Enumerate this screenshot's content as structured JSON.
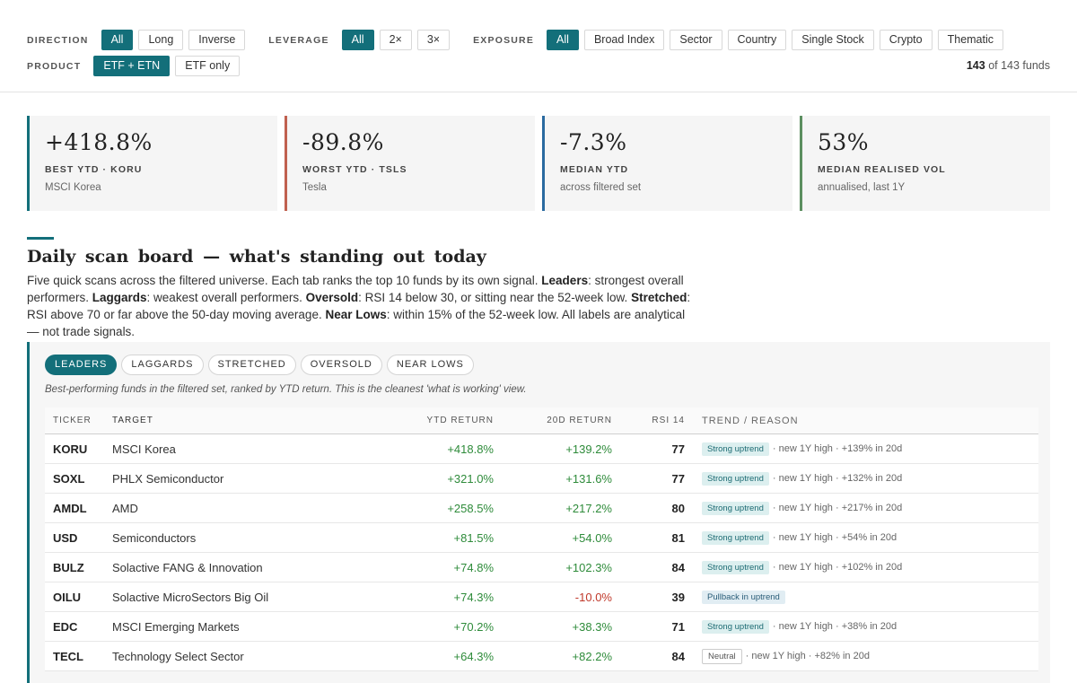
{
  "filters": {
    "direction": {
      "label": "DIRECTION",
      "options": [
        "All",
        "Long",
        "Inverse"
      ],
      "active": 0
    },
    "leverage": {
      "label": "LEVERAGE",
      "options": [
        "All",
        "2×",
        "3×"
      ],
      "active": 0
    },
    "exposure": {
      "label": "EXPOSURE",
      "options": [
        "All",
        "Broad Index",
        "Sector",
        "Country",
        "Single Stock",
        "Crypto",
        "Thematic"
      ],
      "active": 0
    },
    "product": {
      "label": "PRODUCT",
      "options": [
        "ETF + ETN",
        "ETF only"
      ],
      "active": 0
    },
    "fund_count": {
      "shown": "143",
      "rest": " of 143 funds"
    }
  },
  "cards": [
    {
      "value": "+418.8%",
      "label": "BEST YTD · KORU",
      "sub": "MSCI Korea",
      "color": "#136f7a"
    },
    {
      "value": "-89.8%",
      "label": "WORST YTD · TSLS",
      "sub": "Tesla",
      "color": "#c0604f"
    },
    {
      "value": "-7.3%",
      "label": "MEDIAN YTD",
      "sub": "across filtered set",
      "color": "#2a6aa0"
    },
    {
      "value": "53%",
      "label": "MEDIAN REALISED VOL",
      "sub": "annualised, last 1Y",
      "color": "#5c8f60"
    }
  ],
  "section": {
    "title": "Daily scan board — what's standing out today",
    "desc": [
      {
        "t": "Five quick scans across the filtered universe. Each tab ranks the top 10 funds by its own signal. "
      },
      {
        "t": "Leaders",
        "b": true
      },
      {
        "t": ": strongest overall performers. "
      },
      {
        "t": "Laggards",
        "b": true
      },
      {
        "t": ": weakest overall performers. "
      },
      {
        "t": "Oversold",
        "b": true
      },
      {
        "t": ": RSI 14 below 30, or sitting near the 52-week low. "
      },
      {
        "t": "Stretched",
        "b": true
      },
      {
        "t": ": RSI above 70 or far above the 50-day moving average. "
      },
      {
        "t": "Near Lows",
        "b": true
      },
      {
        "t": ": within 15% of the 52-week low. All labels are analytical — not trade signals."
      }
    ]
  },
  "board": {
    "tabs": [
      "LEADERS",
      "LAGGARDS",
      "STRETCHED",
      "OVERSOLD",
      "NEAR LOWS"
    ],
    "active_tab": 0,
    "note": "Best-performing funds in the filtered set, ranked by YTD return. This is the cleanest 'what is working' view.",
    "columns": {
      "ticker": "TICKER",
      "target": "TARGET",
      "ytd": "YTD RETURN",
      "d20": "20D RETURN",
      "rsi": "RSI 14",
      "trend": "TREND / REASON"
    },
    "rows": [
      {
        "ticker": "KORU",
        "target": "MSCI Korea",
        "ytd": "+418.8%",
        "d20": "+139.2%",
        "rsi": "77",
        "badge": "Strong uptrend",
        "badge_kind": "up",
        "reason": "· new 1Y high · +139% in 20d"
      },
      {
        "ticker": "SOXL",
        "target": "PHLX Semiconductor",
        "ytd": "+321.0%",
        "d20": "+131.6%",
        "rsi": "77",
        "badge": "Strong uptrend",
        "badge_kind": "up",
        "reason": "· new 1Y high · +132% in 20d"
      },
      {
        "ticker": "AMDL",
        "target": "AMD",
        "ytd": "+258.5%",
        "d20": "+217.2%",
        "rsi": "80",
        "badge": "Strong uptrend",
        "badge_kind": "up",
        "reason": "· new 1Y high · +217% in 20d"
      },
      {
        "ticker": "USD",
        "target": "Semiconductors",
        "ytd": "+81.5%",
        "d20": "+54.0%",
        "rsi": "81",
        "badge": "Strong uptrend",
        "badge_kind": "up",
        "reason": "· new 1Y high · +54% in 20d"
      },
      {
        "ticker": "BULZ",
        "target": "Solactive FANG & Innovation",
        "ytd": "+74.8%",
        "d20": "+102.3%",
        "rsi": "84",
        "badge": "Strong uptrend",
        "badge_kind": "up",
        "reason": "· new 1Y high · +102% in 20d"
      },
      {
        "ticker": "OILU",
        "target": "Solactive MicroSectors Big Oil",
        "ytd": "+74.3%",
        "d20": "-10.0%",
        "rsi": "39",
        "badge": "Pullback in uptrend",
        "badge_kind": "pb",
        "reason": ""
      },
      {
        "ticker": "EDC",
        "target": "MSCI Emerging Markets",
        "ytd": "+70.2%",
        "d20": "+38.3%",
        "rsi": "71",
        "badge": "Strong uptrend",
        "badge_kind": "up",
        "reason": "· new 1Y high · +38% in 20d"
      },
      {
        "ticker": "TECL",
        "target": "Technology Select Sector",
        "ytd": "+64.3%",
        "d20": "+82.2%",
        "rsi": "84",
        "badge": "Neutral",
        "badge_kind": "neutral",
        "reason": "· new 1Y high · +82% in 20d"
      }
    ]
  }
}
